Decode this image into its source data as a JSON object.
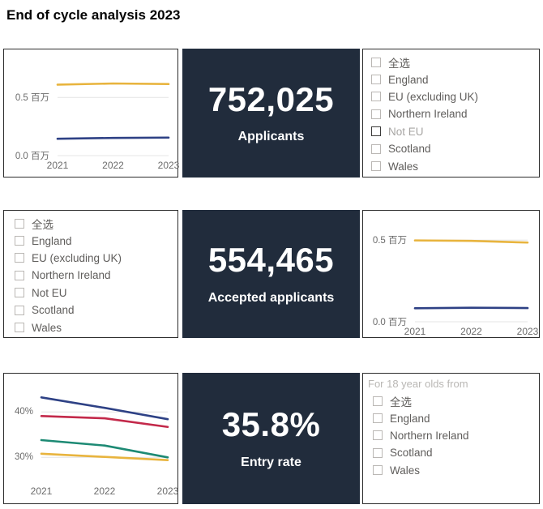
{
  "page": {
    "title": "End of cycle analysis 2023"
  },
  "cards": [
    {
      "value": "752,025",
      "label": "Applicants"
    },
    {
      "value": "554,465",
      "label": "Accepted applicants"
    },
    {
      "value": "35.8%",
      "label": "Entry rate"
    }
  ],
  "slicers": [
    {
      "id": "applicants-domicile",
      "items": [
        {
          "label": "全选",
          "checked": false
        },
        {
          "label": "England",
          "checked": false
        },
        {
          "label": "EU (excluding UK)",
          "checked": false
        },
        {
          "label": "Northern Ireland",
          "checked": false
        },
        {
          "label": "Not EU",
          "checked": false,
          "emphasized": true
        },
        {
          "label": "Scotland",
          "checked": false
        },
        {
          "label": "Wales",
          "checked": false
        }
      ]
    },
    {
      "id": "accepted-domicile",
      "items": [
        {
          "label": "全选",
          "checked": false
        },
        {
          "label": "England",
          "checked": false
        },
        {
          "label": "EU (excluding UK)",
          "checked": false
        },
        {
          "label": "Northern Ireland",
          "checked": false
        },
        {
          "label": "Not EU",
          "checked": false
        },
        {
          "label": "Scotland",
          "checked": false
        },
        {
          "label": "Wales",
          "checked": false
        }
      ]
    },
    {
      "id": "entry-rate-domicile",
      "header": "For 18 year olds from",
      "items": [
        {
          "label": "全选",
          "checked": false
        },
        {
          "label": "England",
          "checked": false
        },
        {
          "label": "Northern Ireland",
          "checked": false
        },
        {
          "label": "Scotland",
          "checked": false
        },
        {
          "label": "Wales",
          "checked": false
        }
      ]
    }
  ],
  "colors": {
    "card_background": "#212c3c",
    "yellow_line": "#e8b43e",
    "navy_line": "#2e4185",
    "red_line": "#c3294a",
    "teal_line": "#1d8a74"
  },
  "chart_data": [
    {
      "type": "line",
      "title": "Applicants trend",
      "x": [
        "2021",
        "2022",
        "2023"
      ],
      "ylim": [
        0,
        0.85
      ],
      "grid": true,
      "legend": "none",
      "yticks": [
        {
          "v": 0.5,
          "label": "0.5 百万"
        },
        {
          "v": 0.0,
          "label": "0.0 百万"
        }
      ],
      "series": [
        {
          "color": "#e8b43e",
          "values": [
            0.61,
            0.62,
            0.615
          ]
        },
        {
          "color": "#2e4185",
          "values": [
            0.145,
            0.152,
            0.155
          ]
        }
      ]
    },
    {
      "type": "line",
      "title": "Accepted applicants trend",
      "x": [
        "2021",
        "2022",
        "2023"
      ],
      "ylim": [
        0,
        0.64
      ],
      "grid": true,
      "legend": "none",
      "yticks": [
        {
          "v": 0.5,
          "label": "0.5 百万"
        },
        {
          "v": 0.0,
          "label": "0.0 百万"
        }
      ],
      "series": [
        {
          "color": "#e8b43e",
          "values": [
            0.498,
            0.495,
            0.485
          ]
        },
        {
          "color": "#2e4185",
          "values": [
            0.083,
            0.086,
            0.084
          ]
        }
      ]
    },
    {
      "type": "line",
      "title": "Entry rate trend",
      "x": [
        "2021",
        "2022",
        "2023"
      ],
      "ylim": [
        24.7,
        47
      ],
      "grid": true,
      "legend": "none",
      "yticks": [
        {
          "v": 40,
          "label": "40%"
        },
        {
          "v": 30,
          "label": "30%"
        }
      ],
      "series": [
        {
          "color": "#2e4185",
          "values": [
            43.2,
            40.9,
            38.4
          ]
        },
        {
          "color": "#c3294a",
          "values": [
            39.1,
            38.6,
            36.7
          ]
        },
        {
          "color": "#1d8a74",
          "values": [
            33.8,
            32.6,
            30.0
          ]
        },
        {
          "color": "#e8b43e",
          "values": [
            30.8,
            30.1,
            29.4
          ]
        }
      ]
    }
  ]
}
